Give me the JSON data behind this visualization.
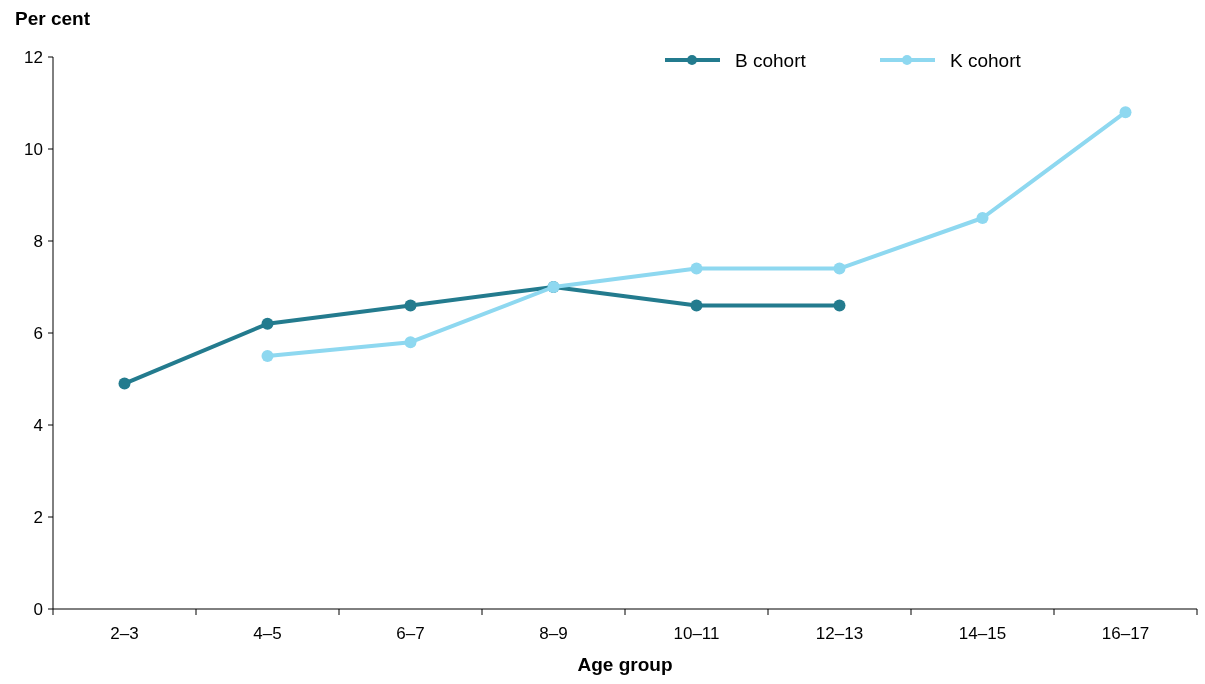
{
  "chart_data": {
    "type": "line",
    "xlabel": "Age group",
    "ylabel": "Per cent",
    "categories": [
      "2–3",
      "4–5",
      "6–7",
      "8–9",
      "10–11",
      "12–13",
      "14–15",
      "16–17"
    ],
    "series": [
      {
        "name": "B cohort",
        "color": "#237b8e",
        "values": [
          4.9,
          6.2,
          6.6,
          7.0,
          6.6,
          6.6,
          null,
          null
        ]
      },
      {
        "name": "K cohort",
        "color": "#8ed8f0",
        "values": [
          null,
          5.5,
          5.8,
          7.0,
          7.4,
          7.4,
          8.5,
          10.8
        ]
      }
    ],
    "ylim": [
      0,
      12
    ],
    "yticks": [
      0,
      2,
      4,
      6,
      8,
      10,
      12
    ],
    "grid": false,
    "legend": "top right",
    "marker": "circle",
    "line_style": "solid"
  }
}
